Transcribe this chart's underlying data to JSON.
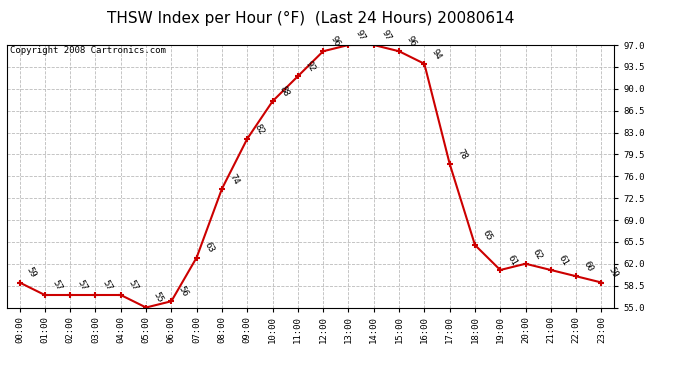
{
  "title": "THSW Index per Hour (°F)  (Last 24 Hours) 20080614",
  "copyright": "Copyright 2008 Cartronics.com",
  "hours": [
    0,
    1,
    2,
    3,
    4,
    5,
    6,
    7,
    8,
    9,
    10,
    11,
    12,
    13,
    14,
    15,
    16,
    17,
    18,
    19,
    20,
    21,
    22,
    23
  ],
  "hour_labels": [
    "00:00",
    "01:00",
    "02:00",
    "03:00",
    "04:00",
    "05:00",
    "06:00",
    "07:00",
    "08:00",
    "09:00",
    "10:00",
    "11:00",
    "12:00",
    "13:00",
    "14:00",
    "15:00",
    "16:00",
    "17:00",
    "18:00",
    "19:00",
    "20:00",
    "21:00",
    "22:00",
    "23:00"
  ],
  "values": [
    59,
    57,
    57,
    57,
    57,
    55,
    56,
    63,
    74,
    82,
    88,
    92,
    96,
    97,
    97,
    96,
    94,
    78,
    65,
    61,
    62,
    61,
    60,
    59
  ],
  "ylim": [
    55.0,
    97.0
  ],
  "yticks": [
    55.0,
    58.5,
    62.0,
    65.5,
    69.0,
    72.5,
    76.0,
    79.5,
    83.0,
    86.5,
    90.0,
    93.5,
    97.0
  ],
  "line_color": "#cc0000",
  "marker_color": "#cc0000",
  "bg_color": "#ffffff",
  "plot_bg_color": "#ffffff",
  "grid_color": "#bbbbbb",
  "title_fontsize": 11,
  "label_fontsize": 6.5,
  "annotation_fontsize": 6.5,
  "copyright_fontsize": 6.5,
  "annotation_rotation": -60
}
